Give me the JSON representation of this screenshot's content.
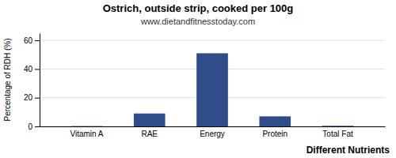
{
  "chart_data": {
    "type": "bar",
    "title": "Ostrich, outside strip, cooked per 100g",
    "subtitle": "www.dietandfitnesstoday.com",
    "xlabel": "Different Nutrients",
    "ylabel": "Percentage of RDH (%)",
    "categories": [
      "Vitamin A",
      "RAE",
      "Energy",
      "Protein",
      "Total Fat"
    ],
    "values": [
      0.2,
      9.0,
      51.0,
      7.0,
      0.4
    ],
    "color": "#2e4d8a",
    "ylim": [
      0,
      65
    ],
    "yticks": [
      0,
      20,
      40,
      60
    ],
    "grid": true
  }
}
